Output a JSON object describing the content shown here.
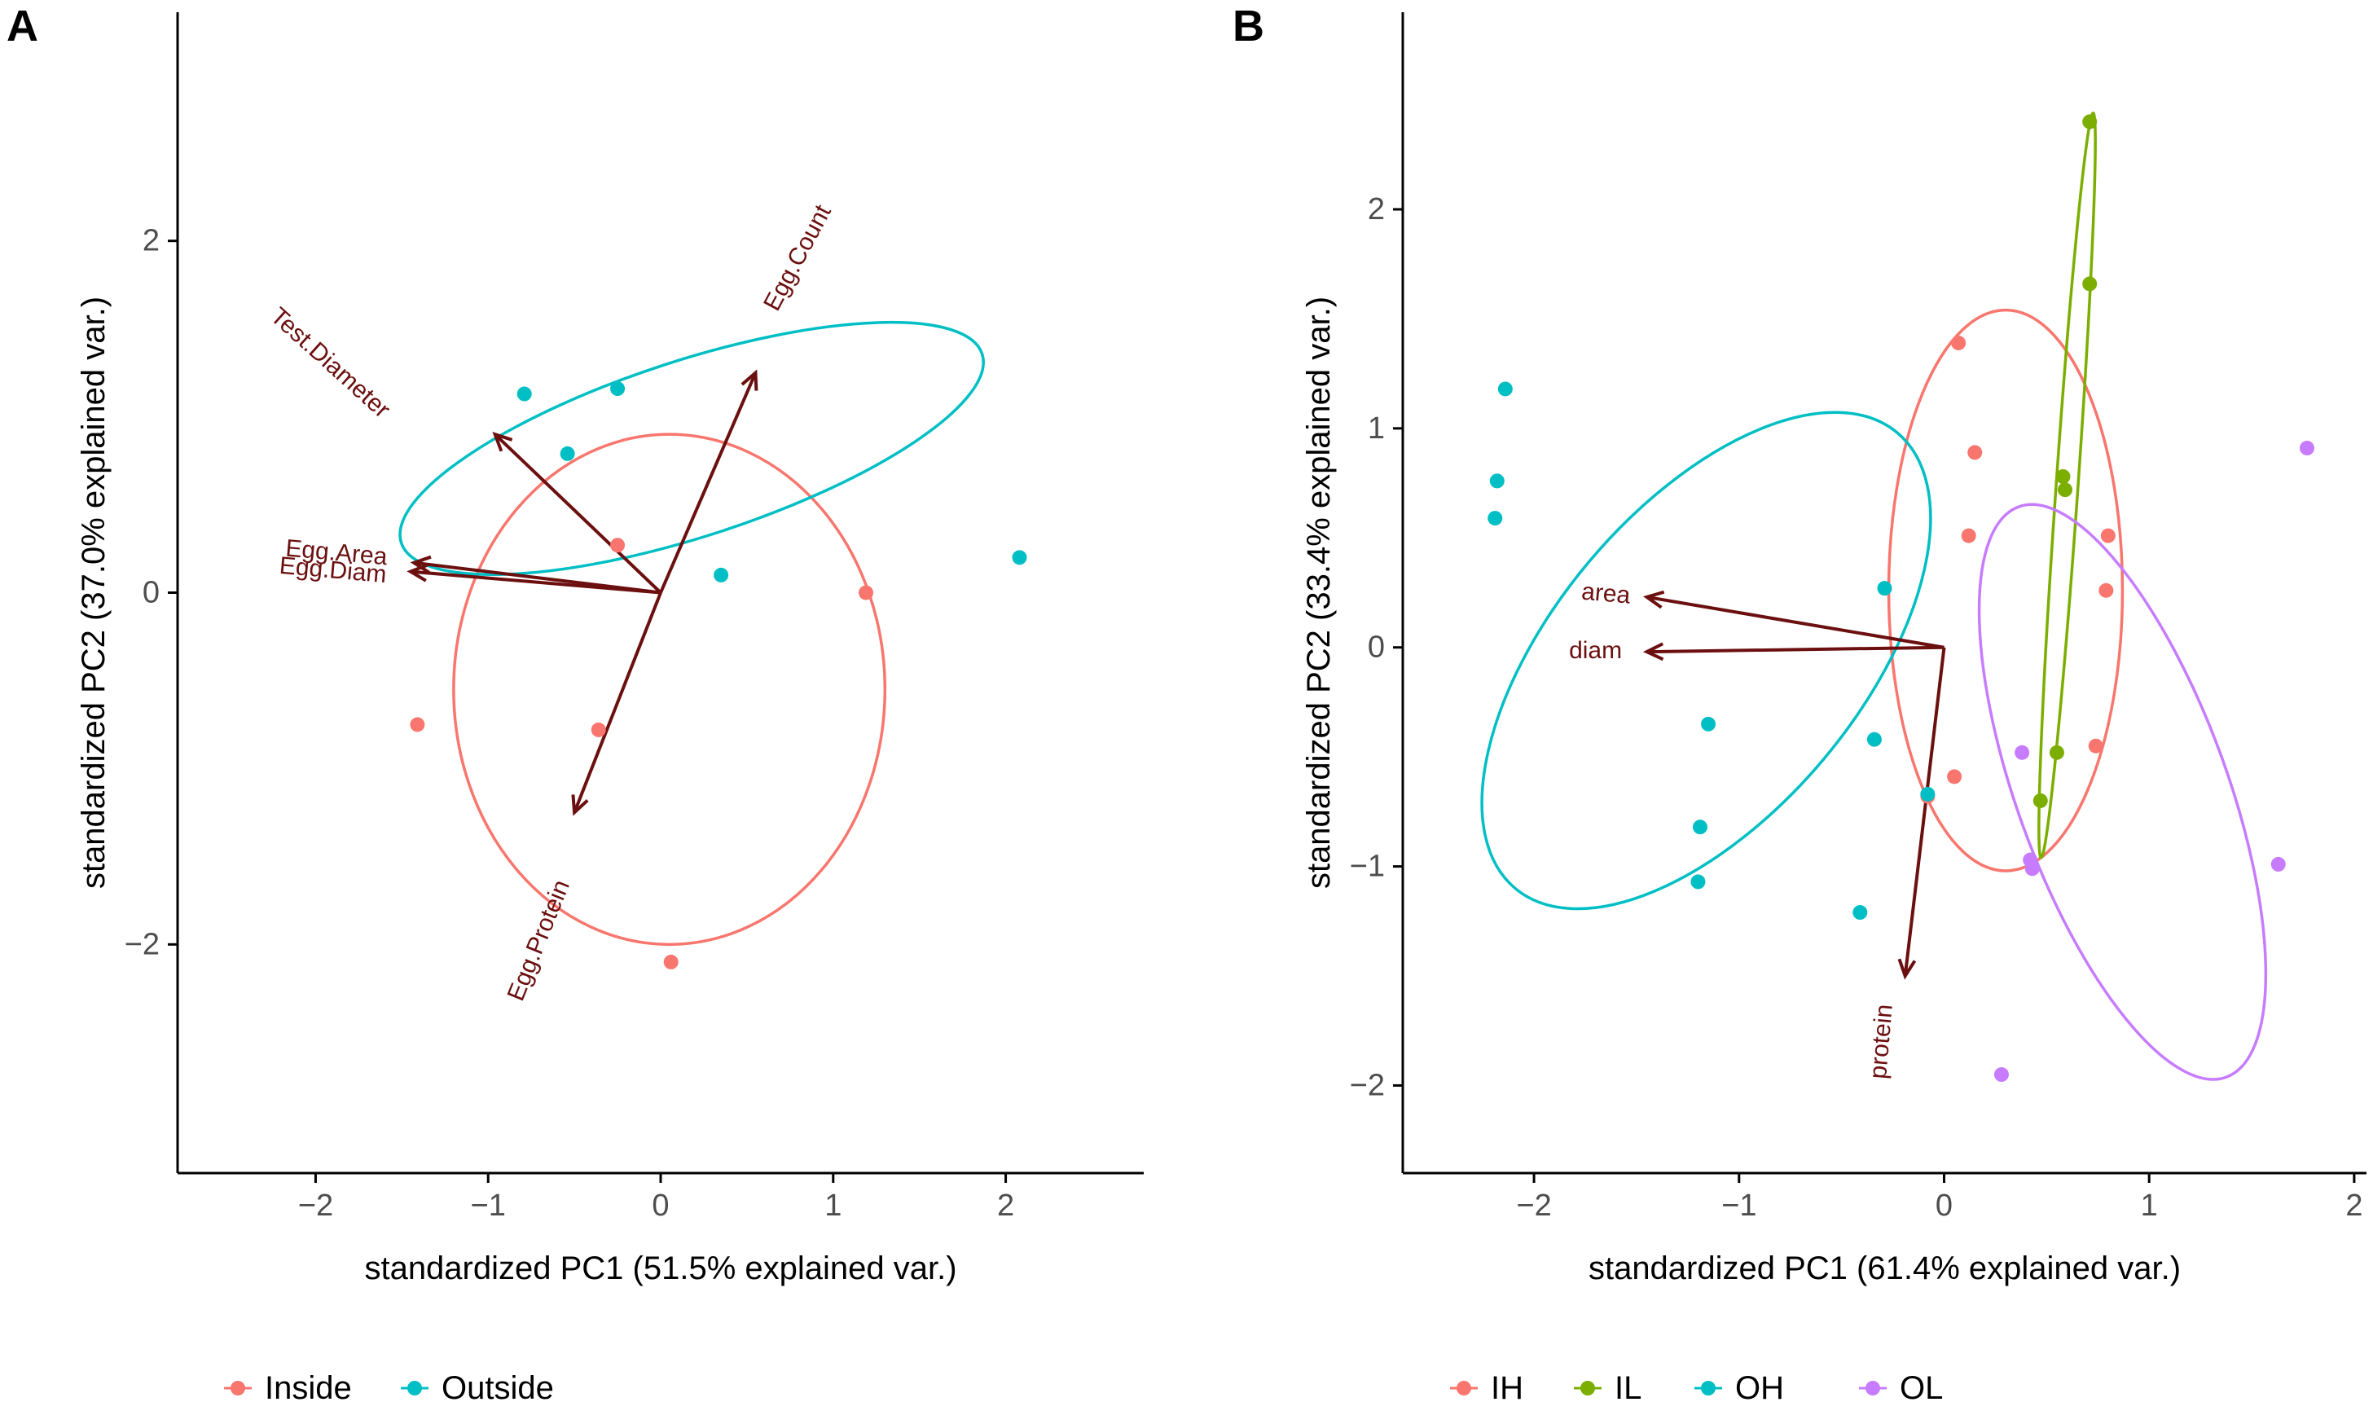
{
  "chart_data": [
    {
      "panel": "A",
      "type": "scatter",
      "subtype": "pca-biplot",
      "xlabel": "standardized PC1 (51.5% explained var.)",
      "ylabel": "standardized PC2 (37.0% explained var.)",
      "xlim": [
        -2.8,
        2.8
      ],
      "ylim": [
        -3.3,
        3.3
      ],
      "xticks": [
        -2,
        -1,
        0,
        1,
        2
      ],
      "yticks": [
        -2,
        0,
        2
      ],
      "legend_position": "bottom-left",
      "grid": false,
      "series": [
        {
          "name": "Inside",
          "color": "#f8766d",
          "points": [
            [
              -0.25,
              0.27
            ],
            [
              1.19,
              0.0
            ],
            [
              -1.41,
              -0.75
            ],
            [
              -0.36,
              -0.78
            ],
            [
              0.06,
              -2.1
            ]
          ],
          "ellipse": {
            "cx": 0.05,
            "cy": -0.55,
            "rx": 1.25,
            "ry": 1.45,
            "angle": 0
          }
        },
        {
          "name": "Outside",
          "color": "#00bfc4",
          "points": [
            [
              -0.79,
              1.13
            ],
            [
              -0.25,
              1.16
            ],
            [
              -0.54,
              0.79
            ],
            [
              0.35,
              0.1
            ],
            [
              2.08,
              0.2
            ]
          ],
          "ellipse": {
            "cx": 0.18,
            "cy": 0.82,
            "rx": 1.77,
            "ry": 0.5,
            "angle": -18
          }
        }
      ],
      "loadings": [
        {
          "name": "Test.Diameter",
          "x": -0.96,
          "y": 0.9,
          "label_x": -1.92,
          "label_y": 1.3,
          "label_angle": 42
        },
        {
          "name": "Egg.Count",
          "x": 0.55,
          "y": 1.25,
          "label_x": 0.8,
          "label_y": 1.9,
          "label_angle": -62
        },
        {
          "name": "Egg.Area",
          "x": -1.43,
          "y": 0.17,
          "label_x": -1.88,
          "label_y": 0.22,
          "label_angle": 5
        },
        {
          "name": "Egg.Diam",
          "x": -1.45,
          "y": 0.12,
          "label_x": -1.9,
          "label_y": 0.12,
          "label_angle": 5
        },
        {
          "name": "Egg.Protein",
          "x": -0.5,
          "y": -1.25,
          "label_x": -0.7,
          "label_y": -1.98,
          "label_angle": -68
        }
      ]
    },
    {
      "panel": "B",
      "type": "scatter",
      "subtype": "pca-biplot",
      "xlabel": "standardized PC1 (61.4% explained var.)",
      "ylabel": "standardized PC2 (33.4% explained var.)",
      "xlim": [
        -2.64,
        2.06
      ],
      "ylim": [
        -2.4,
        2.9
      ],
      "xticks": [
        -2,
        -1,
        0,
        1,
        2
      ],
      "yticks": [
        -2,
        -1,
        0,
        1,
        2
      ],
      "legend_position": "bottom-left",
      "grid": false,
      "series": [
        {
          "name": "IH",
          "color": "#f8766d",
          "points": [
            [
              0.07,
              1.39
            ],
            [
              0.15,
              0.89
            ],
            [
              0.12,
              0.51
            ],
            [
              0.8,
              0.51
            ],
            [
              0.79,
              0.26
            ],
            [
              0.74,
              -0.45
            ],
            [
              0.05,
              -0.59
            ],
            [
              -0.08,
              -0.68
            ]
          ],
          "ellipse": {
            "cx": 0.3,
            "cy": 0.26,
            "rx": 0.57,
            "ry": 1.28,
            "angle": 0
          }
        },
        {
          "name": "IL",
          "color": "#7cae00",
          "points": [
            [
              0.71,
              2.4
            ],
            [
              0.71,
              1.66
            ],
            [
              0.58,
              0.78
            ],
            [
              0.59,
              0.72
            ],
            [
              0.55,
              -0.48
            ],
            [
              0.47,
              -0.7
            ]
          ],
          "ellipse": {
            "cx": 0.6,
            "cy": 0.74,
            "rx": 1.82,
            "ry": 0.05,
            "angle": -86
          }
        },
        {
          "name": "OH",
          "color": "#00bfc4",
          "points": [
            [
              -2.14,
              1.18
            ],
            [
              -2.18,
              0.76
            ],
            [
              -2.19,
              0.59
            ],
            [
              -0.29,
              0.27
            ],
            [
              -1.15,
              -0.35
            ],
            [
              -0.34,
              -0.42
            ],
            [
              -1.19,
              -0.82
            ],
            [
              -1.2,
              -1.07
            ],
            [
              -0.41,
              -1.21
            ],
            [
              -0.08,
              -0.67
            ]
          ],
          "ellipse": {
            "cx": -1.16,
            "cy": -0.06,
            "rx": 1.45,
            "ry": 0.7,
            "angle": -50
          }
        },
        {
          "name": "OL",
          "color": "#c77cff",
          "points": [
            [
              1.77,
              0.91
            ],
            [
              0.38,
              -0.48
            ],
            [
              0.42,
              -0.97
            ],
            [
              0.43,
              -1.01
            ],
            [
              1.63,
              -0.99
            ],
            [
              0.28,
              -1.95
            ]
          ],
          "ellipse": {
            "cx": 0.87,
            "cy": -0.66,
            "rx": 1.48,
            "ry": 0.48,
            "angle": 70
          }
        }
      ],
      "loadings": [
        {
          "name": "area",
          "x": -1.45,
          "y": 0.23,
          "label_x": -1.65,
          "label_y": 0.24,
          "label_angle": 5
        },
        {
          "name": "diam",
          "x": -1.45,
          "y": -0.02,
          "label_x": -1.7,
          "label_y": -0.02,
          "label_angle": 0
        },
        {
          "name": "protein",
          "x": -0.19,
          "y": -1.5,
          "label_x": -0.3,
          "label_y": -1.8,
          "label_angle": -85
        }
      ]
    }
  ],
  "panels": {
    "a": {
      "tag": "A"
    },
    "b": {
      "tag": "B"
    }
  },
  "legend": {
    "a": [
      {
        "label": "Inside",
        "color": "#f8766d"
      },
      {
        "label": "Outside",
        "color": "#00bfc4"
      }
    ],
    "b": [
      {
        "label": "IH",
        "color": "#f8766d"
      },
      {
        "label": "IL",
        "color": "#7cae00"
      },
      {
        "label": "OH",
        "color": "#00bfc4"
      },
      {
        "label": "OL",
        "color": "#c77cff"
      }
    ]
  },
  "colors": {
    "arrow": "#6b0f0f",
    "axis": "#000000",
    "tick_label": "#4d4d4d"
  }
}
